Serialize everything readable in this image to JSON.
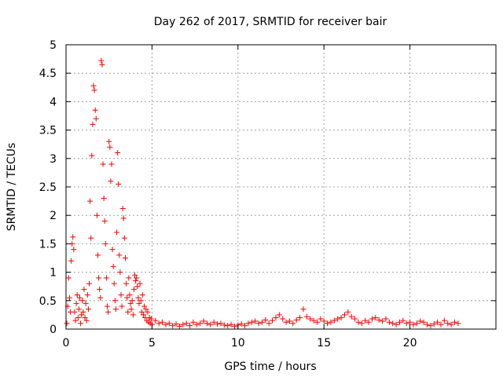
{
  "chart_data": {
    "type": "scatter",
    "title": "Day 262 of 2017, SRMTID for receiver bair",
    "xlabel": "GPS time / hours",
    "ylabel": "SRMTID / TECUs",
    "xlim": [
      0,
      25
    ],
    "ylim": [
      0,
      5
    ],
    "xticks": [
      0,
      5,
      10,
      15,
      20
    ],
    "xtick_labels": [
      "0",
      "5",
      "10",
      "15",
      "20"
    ],
    "yticks": [
      0,
      0.5,
      1,
      1.5,
      2,
      2.5,
      3,
      3.5,
      4,
      4.5,
      5
    ],
    "ytick_labels": [
      "0",
      "0.5",
      "1",
      "1.5",
      "2",
      "2.5",
      "3",
      "3.5",
      "4",
      "4.5",
      "5"
    ],
    "grid": true,
    "marker": "plus",
    "color": "#ff0000",
    "series": [
      {
        "name": "SRMTID",
        "points": [
          [
            0.05,
            0.1
          ],
          [
            0.1,
            0.4
          ],
          [
            0.15,
            0.9
          ],
          [
            0.2,
            0.55
          ],
          [
            0.25,
            0.3
          ],
          [
            0.3,
            1.2
          ],
          [
            0.35,
            1.5
          ],
          [
            0.4,
            1.62
          ],
          [
            0.45,
            1.4
          ],
          [
            0.5,
            0.3
          ],
          [
            0.55,
            0.15
          ],
          [
            0.6,
            0.45
          ],
          [
            0.65,
            0.6
          ],
          [
            0.7,
            0.2
          ],
          [
            0.75,
            0.35
          ],
          [
            0.8,
            0.55
          ],
          [
            0.85,
            0.1
          ],
          [
            0.9,
            0.25
          ],
          [
            0.95,
            0.5
          ],
          [
            1.0,
            0.3
          ],
          [
            1.05,
            0.7
          ],
          [
            1.1,
            0.2
          ],
          [
            1.15,
            0.45
          ],
          [
            1.2,
            0.15
          ],
          [
            1.25,
            0.6
          ],
          [
            1.3,
            0.35
          ],
          [
            1.35,
            0.8
          ],
          [
            1.4,
            2.25
          ],
          [
            1.45,
            1.6
          ],
          [
            1.5,
            3.05
          ],
          [
            1.55,
            3.6
          ],
          [
            1.6,
            4.28
          ],
          [
            1.65,
            4.2
          ],
          [
            1.7,
            3.85
          ],
          [
            1.75,
            3.7
          ],
          [
            1.8,
            2.0
          ],
          [
            1.85,
            1.3
          ],
          [
            1.9,
            0.9
          ],
          [
            1.95,
            0.7
          ],
          [
            2.0,
            0.55
          ],
          [
            2.05,
            4.72
          ],
          [
            2.1,
            4.65
          ],
          [
            2.15,
            2.9
          ],
          [
            2.2,
            2.3
          ],
          [
            2.25,
            1.9
          ],
          [
            2.3,
            1.5
          ],
          [
            2.35,
            0.9
          ],
          [
            2.4,
            0.4
          ],
          [
            2.45,
            0.3
          ],
          [
            2.5,
            3.3
          ],
          [
            2.55,
            3.2
          ],
          [
            2.6,
            2.6
          ],
          [
            2.65,
            2.9
          ],
          [
            2.7,
            1.4
          ],
          [
            2.75,
            1.1
          ],
          [
            2.8,
            0.8
          ],
          [
            2.85,
            0.5
          ],
          [
            2.9,
            0.35
          ],
          [
            2.95,
            1.7
          ],
          [
            3.0,
            3.1
          ],
          [
            3.05,
            2.55
          ],
          [
            3.1,
            1.3
          ],
          [
            3.15,
            1.0
          ],
          [
            3.2,
            0.6
          ],
          [
            3.25,
            0.4
          ],
          [
            3.3,
            2.12
          ],
          [
            3.35,
            1.95
          ],
          [
            3.4,
            1.6
          ],
          [
            3.45,
            1.25
          ],
          [
            3.5,
            0.8
          ],
          [
            3.55,
            0.55
          ],
          [
            3.6,
            0.3
          ],
          [
            3.65,
            0.9
          ],
          [
            3.7,
            0.6
          ],
          [
            3.75,
            0.45
          ],
          [
            3.8,
            0.35
          ],
          [
            3.85,
            0.5
          ],
          [
            3.9,
            0.25
          ],
          [
            3.95,
            0.7
          ],
          [
            4.0,
            0.95
          ],
          [
            4.05,
            0.85
          ],
          [
            4.1,
            0.9
          ],
          [
            4.15,
            0.75
          ],
          [
            4.2,
            0.55
          ],
          [
            4.25,
            0.45
          ],
          [
            4.3,
            0.8
          ],
          [
            4.35,
            0.5
          ],
          [
            4.4,
            0.3
          ],
          [
            4.45,
            0.6
          ],
          [
            4.5,
            0.25
          ],
          [
            4.55,
            0.4
          ],
          [
            4.6,
            0.2
          ],
          [
            4.65,
            0.35
          ],
          [
            4.7,
            0.15
          ],
          [
            4.75,
            0.3
          ],
          [
            4.8,
            0.12
          ],
          [
            4.85,
            0.2
          ],
          [
            4.9,
            0.1
          ],
          [
            4.95,
            0.18
          ],
          [
            5.0,
            0.08
          ],
          [
            5.2,
            0.15
          ],
          [
            5.4,
            0.1
          ],
          [
            5.6,
            0.12
          ],
          [
            5.8,
            0.08
          ],
          [
            6.0,
            0.1
          ],
          [
            6.2,
            0.06
          ],
          [
            6.4,
            0.09
          ],
          [
            6.6,
            0.05
          ],
          [
            6.8,
            0.08
          ],
          [
            7.0,
            0.1
          ],
          [
            7.2,
            0.06
          ],
          [
            7.4,
            0.12
          ],
          [
            7.6,
            0.08
          ],
          [
            7.8,
            0.1
          ],
          [
            8.0,
            0.14
          ],
          [
            8.2,
            0.1
          ],
          [
            8.4,
            0.08
          ],
          [
            8.6,
            0.12
          ],
          [
            8.8,
            0.09
          ],
          [
            9.0,
            0.1
          ],
          [
            9.2,
            0.07
          ],
          [
            9.4,
            0.06
          ],
          [
            9.6,
            0.08
          ],
          [
            9.8,
            0.05
          ],
          [
            10.0,
            0.07
          ],
          [
            10.2,
            0.09
          ],
          [
            10.4,
            0.06
          ],
          [
            10.6,
            0.1
          ],
          [
            10.8,
            0.12
          ],
          [
            11.0,
            0.14
          ],
          [
            11.2,
            0.1
          ],
          [
            11.4,
            0.12
          ],
          [
            11.6,
            0.16
          ],
          [
            11.8,
            0.1
          ],
          [
            12.0,
            0.15
          ],
          [
            12.2,
            0.2
          ],
          [
            12.4,
            0.25
          ],
          [
            12.6,
            0.18
          ],
          [
            12.8,
            0.12
          ],
          [
            13.0,
            0.14
          ],
          [
            13.2,
            0.1
          ],
          [
            13.4,
            0.16
          ],
          [
            13.6,
            0.2
          ],
          [
            13.8,
            0.35
          ],
          [
            14.0,
            0.22
          ],
          [
            14.2,
            0.18
          ],
          [
            14.4,
            0.15
          ],
          [
            14.6,
            0.12
          ],
          [
            14.8,
            0.18
          ],
          [
            15.0,
            0.14
          ],
          [
            15.2,
            0.1
          ],
          [
            15.4,
            0.12
          ],
          [
            15.6,
            0.15
          ],
          [
            15.8,
            0.18
          ],
          [
            16.0,
            0.2
          ],
          [
            16.2,
            0.25
          ],
          [
            16.4,
            0.3
          ],
          [
            16.6,
            0.22
          ],
          [
            16.8,
            0.18
          ],
          [
            17.0,
            0.12
          ],
          [
            17.2,
            0.1
          ],
          [
            17.4,
            0.15
          ],
          [
            17.6,
            0.12
          ],
          [
            17.8,
            0.18
          ],
          [
            18.0,
            0.2
          ],
          [
            18.2,
            0.16
          ],
          [
            18.4,
            0.14
          ],
          [
            18.6,
            0.18
          ],
          [
            18.8,
            0.12
          ],
          [
            19.0,
            0.1
          ],
          [
            19.2,
            0.08
          ],
          [
            19.4,
            0.12
          ],
          [
            19.6,
            0.15
          ],
          [
            19.8,
            0.1
          ],
          [
            20.0,
            0.12
          ],
          [
            20.2,
            0.08
          ],
          [
            20.4,
            0.1
          ],
          [
            20.6,
            0.14
          ],
          [
            20.8,
            0.12
          ],
          [
            21.0,
            0.08
          ],
          [
            21.2,
            0.06
          ],
          [
            21.4,
            0.09
          ],
          [
            21.6,
            0.12
          ],
          [
            21.8,
            0.08
          ],
          [
            22.0,
            0.15
          ],
          [
            22.2,
            0.1
          ],
          [
            22.4,
            0.08
          ],
          [
            22.6,
            0.12
          ],
          [
            22.8,
            0.1
          ]
        ]
      }
    ]
  }
}
